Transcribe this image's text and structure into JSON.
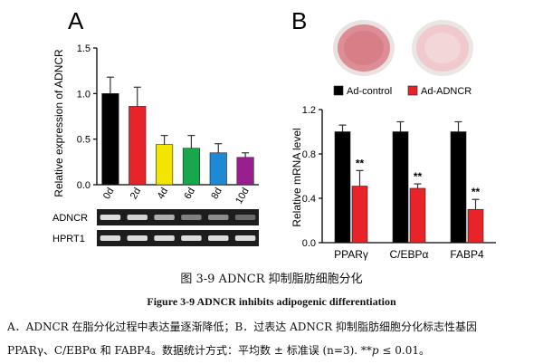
{
  "panelA": {
    "letter": "A",
    "chart_data": {
      "type": "bar",
      "ylabel": "Relative expression of ADNCR",
      "xlabel": "",
      "categories": [
        "0d",
        "2d",
        "4d",
        "6d",
        "8d",
        "10d"
      ],
      "values": [
        1.0,
        0.86,
        0.44,
        0.4,
        0.35,
        0.3
      ],
      "errors": [
        0.18,
        0.21,
        0.1,
        0.14,
        0.1,
        0.05
      ],
      "colors": [
        "#000000",
        "#e8232a",
        "#f2e600",
        "#16a84a",
        "#1e8ad6",
        "#9a1f8e"
      ],
      "ylim": [
        0,
        1.5
      ],
      "yticks": [
        0.0,
        0.5,
        1.0,
        1.5
      ],
      "ytick_labels": [
        "0.0",
        "0.5",
        "1.0",
        "1.5"
      ]
    },
    "gel": {
      "rows": [
        "ADNCR",
        "HPRT1"
      ],
      "adncr_intensity": [
        0.95,
        0.9,
        0.75,
        0.55,
        0.6,
        0.45
      ],
      "hprt_intensity": [
        0.95,
        0.95,
        0.95,
        0.95,
        0.95,
        0.95
      ]
    }
  },
  "panelB": {
    "letter": "B",
    "chart_data": {
      "type": "bar",
      "ylabel": "Relative mRNA level",
      "xlabel": "",
      "categories": [
        "PPARγ",
        "C/EBPα",
        "FABP4"
      ],
      "series": [
        {
          "name": "Ad-control",
          "color": "#000000",
          "values": [
            1.0,
            1.0,
            1.0
          ],
          "errors": [
            0.06,
            0.09,
            0.09
          ]
        },
        {
          "name": "Ad-ADNCR",
          "color": "#e8232a",
          "values": [
            0.51,
            0.49,
            0.3
          ],
          "errors": [
            0.14,
            0.04,
            0.09
          ]
        }
      ],
      "annotations": [
        "**",
        "**",
        "**"
      ],
      "ylim": [
        0,
        1.2
      ],
      "yticks": [
        0.0,
        0.4,
        0.8,
        1.2
      ],
      "ytick_labels": [
        "0.0",
        "0.4",
        "0.8",
        "1.2"
      ],
      "legend": "top"
    }
  },
  "caption_cn": "图 3-9 ADNCR 抑制脂肪细胞分化",
  "caption_en": "Figure 3-9 ADNCR inhibits adipogenic differentiation",
  "note": {
    "line1": "A．ADNCR 在脂分化过程中表达量逐渐降低；B．过表达 ADNCR 抑制脂肪细胞分化标志性基因",
    "line2a": "PPARγ、C/EBPα 和 FABP4。数据统计方式：平均数 ± 标准误 (n=3). **",
    "line2_p": "p",
    "line2b": " ≤ 0.01。"
  }
}
